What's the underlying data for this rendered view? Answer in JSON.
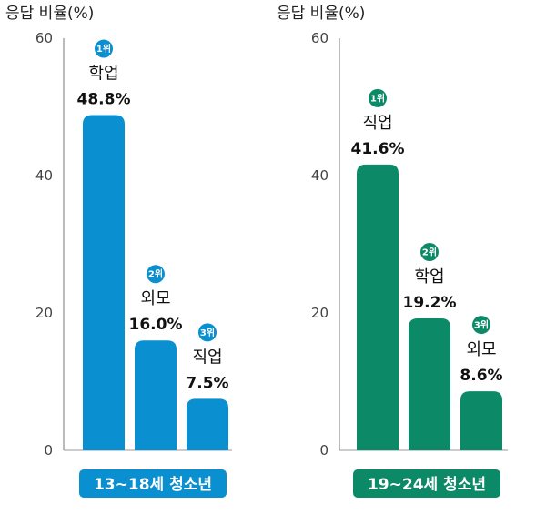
{
  "chart_data": [
    {
      "type": "bar",
      "ylabel": "응답 비율(%)",
      "ylim": [
        0,
        60
      ],
      "yticks": [
        0,
        20,
        40,
        60
      ],
      "group_label": "13~18세 청소년",
      "color": "#0a8fd0",
      "bars": [
        {
          "rank": "1위",
          "category": "학업",
          "value": 48.8,
          "value_label": "48.8%"
        },
        {
          "rank": "2위",
          "category": "외모",
          "value": 16.0,
          "value_label": "16.0%"
        },
        {
          "rank": "3위",
          "category": "직업",
          "value": 7.5,
          "value_label": "7.5%"
        }
      ]
    },
    {
      "type": "bar",
      "ylabel": "응답 비율(%)",
      "ylim": [
        0,
        60
      ],
      "yticks": [
        0,
        20,
        40,
        60
      ],
      "group_label": "19~24세 청소년",
      "color": "#0c8a67",
      "bars": [
        {
          "rank": "1위",
          "category": "직업",
          "value": 41.6,
          "value_label": "41.6%"
        },
        {
          "rank": "2위",
          "category": "학업",
          "value": 19.2,
          "value_label": "19.2%"
        },
        {
          "rank": "3위",
          "category": "외모",
          "value": 8.6,
          "value_label": "8.6%"
        }
      ]
    }
  ]
}
